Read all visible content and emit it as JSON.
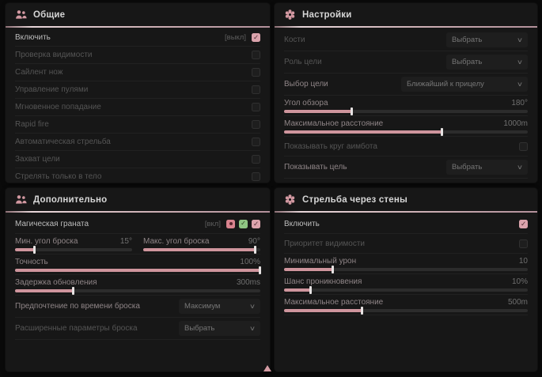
{
  "theme": {
    "accent_pink": "#dba3ac",
    "slider_fill": "#cf959d",
    "panel_bg": "#171717",
    "page_bg": "#0a0a0a",
    "header_line": "#cdafb4",
    "green_icon": "#8fc583"
  },
  "panels": {
    "general": {
      "title": "Общие",
      "icon": "users-icon",
      "rows": [
        {
          "label": "Включить",
          "keybind": "[выкл]",
          "checked": true
        },
        {
          "label": "Проверка видимости",
          "checked": false
        },
        {
          "label": "Сайлент нож",
          "checked": false
        },
        {
          "label": "Управление пулями",
          "checked": false
        },
        {
          "label": "Мгновенное попадание",
          "checked": false
        },
        {
          "label": "Rapid fire",
          "checked": false
        },
        {
          "label": "Автоматическая стрельба",
          "checked": false
        },
        {
          "label": "Захват цели",
          "checked": false
        },
        {
          "label": "Стрелять только в тело",
          "checked": false
        }
      ]
    },
    "settings": {
      "title": "Настройки",
      "icon": "gear-flower-icon",
      "rows": [
        {
          "label": "Кости",
          "type": "dropdown",
          "value": "Выбрать"
        },
        {
          "label": "Роль цели",
          "type": "dropdown",
          "value": "Выбрать"
        },
        {
          "label": "Выбор цели",
          "type": "dropdown",
          "value": "Ближайший к прицелу"
        },
        {
          "label": "Угол обзора",
          "type": "slider",
          "value": "180°",
          "fill": 28
        },
        {
          "label": "Максимальное расстояние",
          "type": "slider",
          "value": "1000m",
          "fill": 65
        },
        {
          "label": "Показывать круг аимбота",
          "type": "checkbox",
          "checked": false
        },
        {
          "label": "Показывать цель",
          "type": "dropdown",
          "value": "Выбрать"
        }
      ]
    },
    "additional": {
      "title": "Дополнительно",
      "icon": "users-icon",
      "rows": [
        {
          "label": "Магическая граната",
          "keybind": "[вкл]",
          "checked": true,
          "icons": [
            "pink-flower-icon",
            "green-check-icon"
          ]
        },
        {
          "label": "Мин. угол броска",
          "type": "slider",
          "value": "15°",
          "fill": 17
        },
        {
          "label": "Макс. угол броска",
          "type": "slider",
          "value": "90°",
          "fill": 96
        },
        {
          "label": "Точность",
          "type": "slider",
          "value": "100%",
          "fill": 100
        },
        {
          "label": "Задержка обновления",
          "type": "slider",
          "value": "300ms",
          "fill": 24
        },
        {
          "label": "Предпочтение по времени броска",
          "type": "dropdown",
          "value": "Максимум"
        },
        {
          "label": "Расширенные параметры броска",
          "type": "dropdown",
          "value": "Выбрать"
        }
      ]
    },
    "walls": {
      "title": "Стрельба через стены",
      "icon": "gear-flower-icon",
      "rows": [
        {
          "label": "Включить",
          "checked": true
        },
        {
          "label": "Приоритет видимости",
          "checked": false
        },
        {
          "label": "Минимальный урон",
          "type": "slider",
          "value": "10",
          "fill": 20
        },
        {
          "label": "Шанс проникновения",
          "type": "slider",
          "value": "10%",
          "fill": 11
        },
        {
          "label": "Максимальное расстояние",
          "type": "slider",
          "value": "500m",
          "fill": 32
        }
      ]
    }
  },
  "cursor": {
    "shape": "triangle-up",
    "color": "#d49ca4"
  }
}
